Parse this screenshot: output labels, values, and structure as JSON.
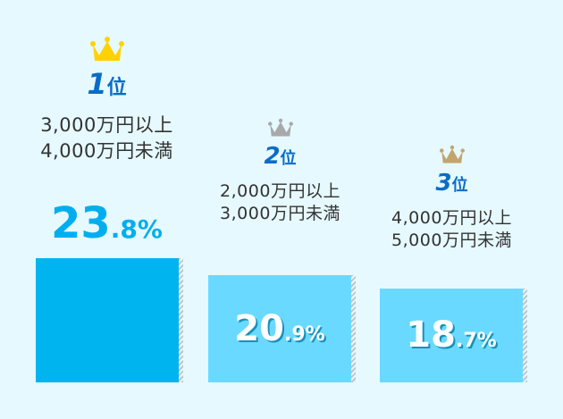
{
  "chart_data": {
    "type": "bar",
    "categories": [
      "3,000万円以上\n4,000万円未満",
      "2,000万円以上\n3,000万円未満",
      "4,000万円以上\n5,000万円未満"
    ],
    "items": [
      {
        "rank_num": "1",
        "rank_suffix": "位",
        "range_line1": "3,000万円以上",
        "range_line2": "4,000万円未満",
        "value": 23.8,
        "int": "23",
        "dec": ".8%",
        "color": "#00b4f0",
        "crown_color": "#ffd200"
      },
      {
        "rank_num": "2",
        "rank_suffix": "位",
        "range_line1": "2,000万円以上",
        "range_line2": "3,000万円未満",
        "value": 20.9,
        "int": "20",
        "dec": ".9%",
        "color": "#6ad9ff",
        "crown_color": "#a9a9a9"
      },
      {
        "rank_num": "3",
        "rank_suffix": "位",
        "range_line1": "4,000万円以上",
        "range_line2": "5,000万円未満",
        "value": 18.7,
        "int": "18",
        "dec": ".7%",
        "color": "#6ad9ff",
        "crown_color": "#c3a46c"
      }
    ],
    "values": [
      23.8,
      20.9,
      18.7
    ],
    "unit": "%"
  }
}
